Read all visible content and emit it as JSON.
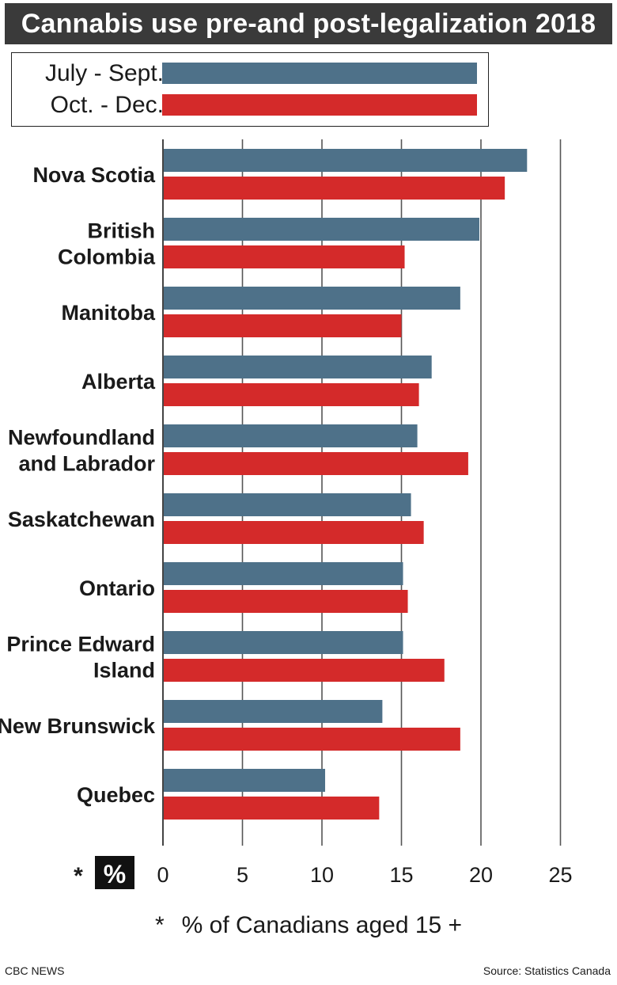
{
  "title": "Cannabis use pre-and post-legalization 2018",
  "legend": [
    {
      "label": "July - Sept.",
      "color": "#4e7189"
    },
    {
      "label": "Oct. - Dec.",
      "color": "#d42a2a"
    }
  ],
  "axis": {
    "unit_star": "*",
    "unit_label": "%",
    "ticks": [
      "0",
      "5",
      "10",
      "15",
      "20",
      "25"
    ]
  },
  "footnote": {
    "star": "*",
    "text": "% of Canadians aged 15 +"
  },
  "credit": "CBC NEWS",
  "source": "Source: Statistics Canada",
  "chart_data": {
    "type": "bar",
    "orientation": "horizontal",
    "title": "Cannabis use pre-and post-legalization 2018",
    "categories": [
      [
        "Nova Scotia"
      ],
      [
        "British",
        "Colombia"
      ],
      [
        "Manitoba"
      ],
      [
        "Alberta"
      ],
      [
        "Newfoundland",
        "and Labrador"
      ],
      [
        "Saskatchewan"
      ],
      [
        "Ontario"
      ],
      [
        "Prince Edward",
        "Island"
      ],
      [
        "New Brunswick"
      ],
      [
        "Quebec"
      ]
    ],
    "series": [
      {
        "name": "July - Sept.",
        "color": "#4e7189",
        "values": [
          22.9,
          19.9,
          18.7,
          16.9,
          16.0,
          15.6,
          15.1,
          15.1,
          13.8,
          10.2
        ]
      },
      {
        "name": "Oct. - Dec.",
        "color": "#d42a2a",
        "values": [
          21.5,
          15.2,
          15.0,
          16.1,
          19.2,
          16.4,
          15.4,
          17.7,
          18.7,
          13.6
        ]
      }
    ],
    "xlim": [
      0,
      25
    ],
    "xticks": [
      0,
      5,
      10,
      15,
      20,
      25
    ],
    "grid": true,
    "legend_position": "top-left",
    "xlabel": "% of Canadians aged 15 +"
  }
}
